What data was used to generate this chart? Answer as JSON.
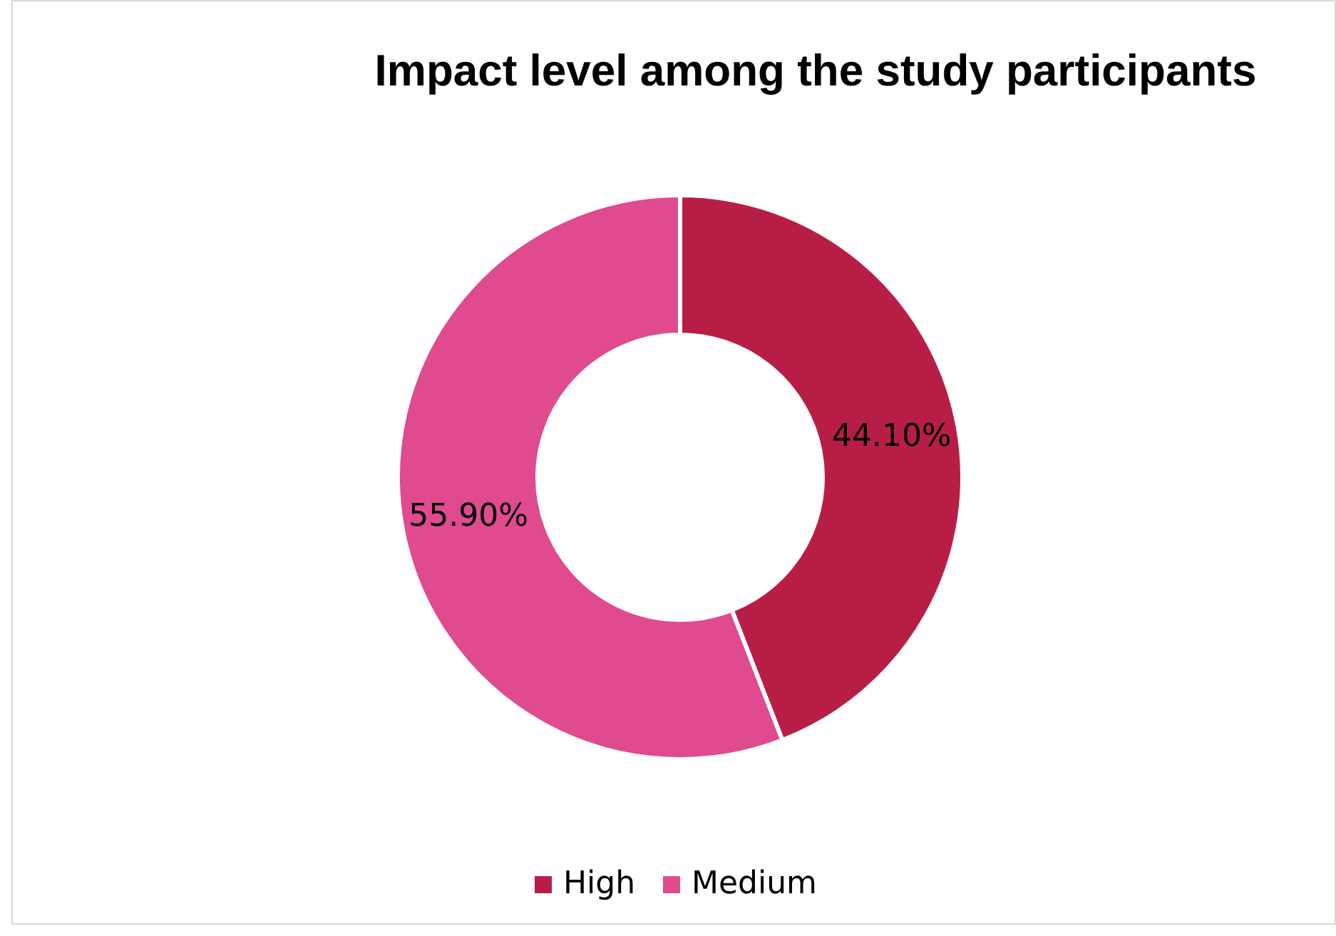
{
  "chart_data": {
    "type": "donut",
    "title": "Impact level among the study participants",
    "categories": [
      "High",
      "Medium"
    ],
    "values": [
      44.1,
      55.9
    ],
    "colors": [
      "#b81e45",
      "#e04a8f"
    ],
    "value_labels": [
      "44.10%",
      "55.90%"
    ],
    "legend": "bottom"
  }
}
